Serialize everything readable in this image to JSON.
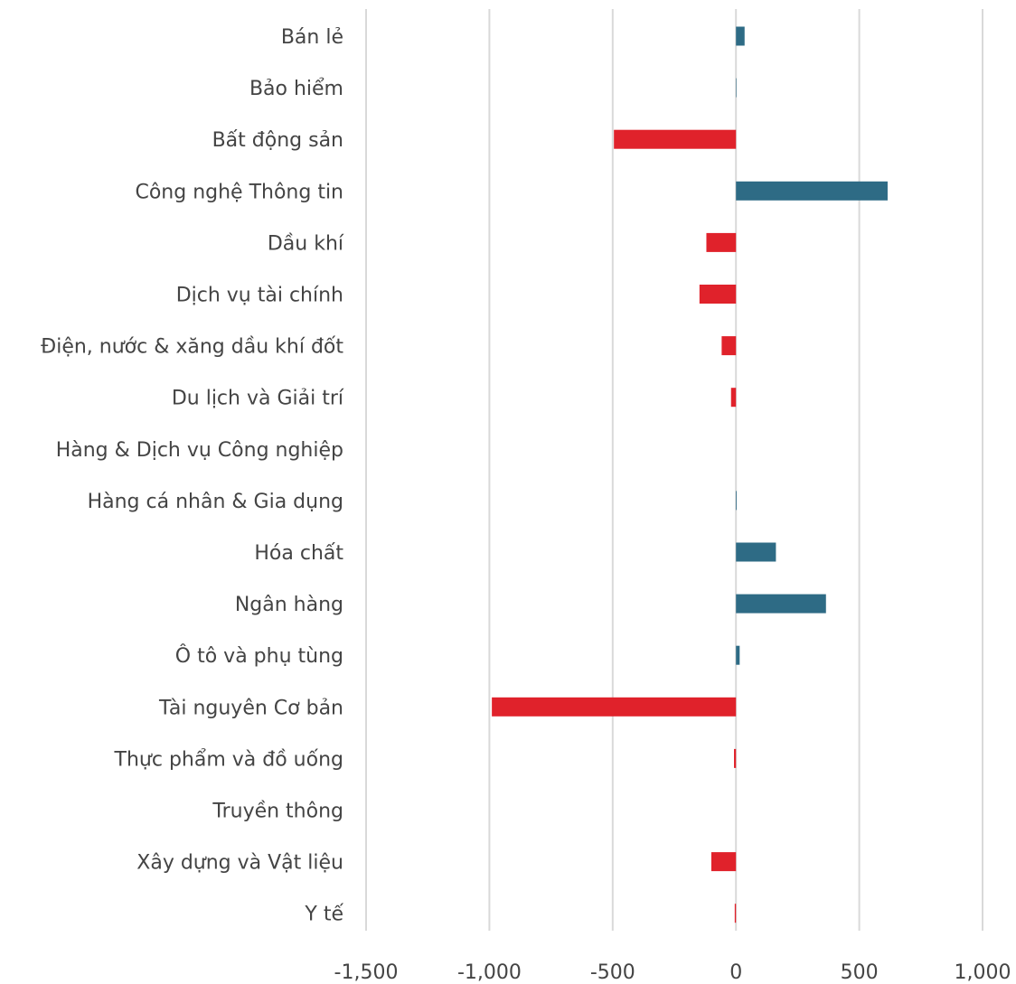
{
  "chart_data": {
    "type": "bar",
    "orientation": "horizontal",
    "title": "",
    "xlabel": "",
    "ylabel": "",
    "categories": [
      "Bán lẻ",
      "Bảo hiểm",
      "Bất động sản",
      "Công nghệ Thông tin",
      "Dầu khí",
      "Dịch vụ tài chính",
      "Điện, nước & xăng dầu khí đốt",
      "Du lịch và Giải trí",
      "Hàng & Dịch vụ Công nghiệp",
      "Hàng cá nhân & Gia dụng",
      "Hóa chất",
      "Ngân hàng",
      "Ô tô và phụ tùng",
      "Tài nguyên Cơ bản",
      "Thực phẩm và đồ uống",
      "Truyền thông",
      "Xây dựng và Vật liệu",
      "Y tế"
    ],
    "values": [
      35,
      2,
      -495,
      615,
      -120,
      -148,
      -58,
      -20,
      0,
      3,
      162,
      365,
      15,
      -990,
      -8,
      0,
      -100,
      -5
    ],
    "xlim": [
      -1500,
      1000
    ],
    "xticks": [
      -1500,
      -1000,
      -500,
      0,
      500,
      1000
    ],
    "xtick_labels": [
      "-1,500",
      "-1,000",
      "-500",
      "0",
      "500",
      "1,000"
    ],
    "grid": true,
    "colors": {
      "positive": "#2e6b85",
      "negative": "#e0222b"
    }
  }
}
